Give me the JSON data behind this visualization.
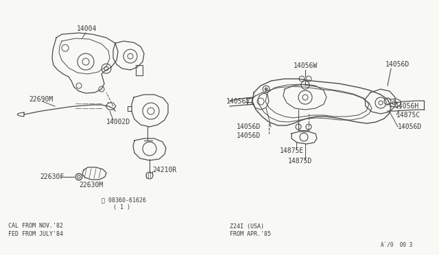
{
  "bg_color": "#f8f8f5",
  "line_color": "#4a4a4a",
  "text_color": "#3a3a3a",
  "bottom_left_text_1": "CAL FROM NOV.'82",
  "bottom_left_text_2": "FED FROM JULY'84",
  "bottom_right_text_1": "Z24I (USA)",
  "bottom_right_text_2": "FROM APR.'85",
  "bottom_corner_text": "A`/0  00 3",
  "screw_text": "Ⓢ 08360-61626",
  "screw_sub": "( 1 )",
  "fs": 7.0,
  "fs_small": 6.0
}
